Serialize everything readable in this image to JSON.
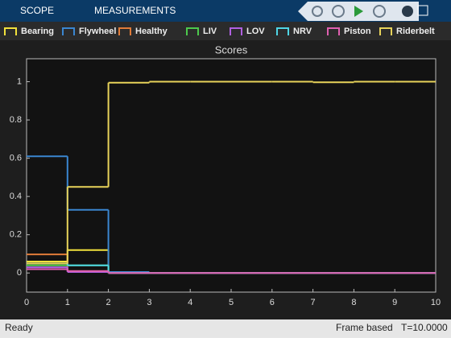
{
  "toolbar": {
    "tabs": [
      "SCOPE",
      "MEASUREMENTS"
    ]
  },
  "status": {
    "state": "Ready",
    "mode": "Frame based",
    "time": "T=10.0000"
  },
  "chart_data": {
    "type": "stairs",
    "title": "Scores",
    "x": [
      0,
      1,
      2,
      3,
      4,
      5,
      6,
      7,
      8,
      9
    ],
    "xlim": [
      0,
      10
    ],
    "xticks": [
      0,
      1,
      2,
      3,
      4,
      5,
      6,
      7,
      8,
      9,
      10
    ],
    "ylim": [
      -0.1,
      1.12
    ],
    "yticks": [
      0,
      0.2,
      0.4,
      0.6,
      0.8,
      1
    ],
    "grid": false,
    "legend": "top",
    "series": [
      {
        "name": "Bearing",
        "color": "#f2e13c",
        "values": [
          0.06,
          0.12,
          0,
          0,
          0,
          0,
          0,
          0,
          0,
          0
        ]
      },
      {
        "name": "Flywheel",
        "color": "#3a86d0",
        "values": [
          0.61,
          0.33,
          0.005,
          0,
          0,
          0,
          0,
          0,
          0,
          0
        ]
      },
      {
        "name": "Healthy",
        "color": "#e07b39",
        "values": [
          0.097,
          0.01,
          0,
          0,
          0,
          0,
          0,
          0,
          0,
          0
        ]
      },
      {
        "name": "LIV",
        "color": "#4cc94c",
        "values": [
          0.04,
          0.04,
          0,
          0,
          0,
          0,
          0,
          0,
          0,
          0
        ]
      },
      {
        "name": "LOV",
        "color": "#b060e0",
        "values": [
          0.03,
          0.005,
          0,
          0,
          0,
          0,
          0,
          0,
          0,
          0
        ]
      },
      {
        "name": "NRV",
        "color": "#4fd6e6",
        "values": [
          0.05,
          0.04,
          0,
          0,
          0,
          0,
          0,
          0,
          0,
          0
        ]
      },
      {
        "name": "Piston",
        "color": "#e060b0",
        "values": [
          0.02,
          0.01,
          0,
          0,
          0,
          0,
          0,
          0,
          0,
          0
        ]
      },
      {
        "name": "Riderbelt",
        "color": "#e8d35a",
        "values": [
          0.05,
          0.45,
          0.995,
          1,
          1,
          1,
          1,
          0.997,
          1,
          1
        ]
      }
    ]
  }
}
